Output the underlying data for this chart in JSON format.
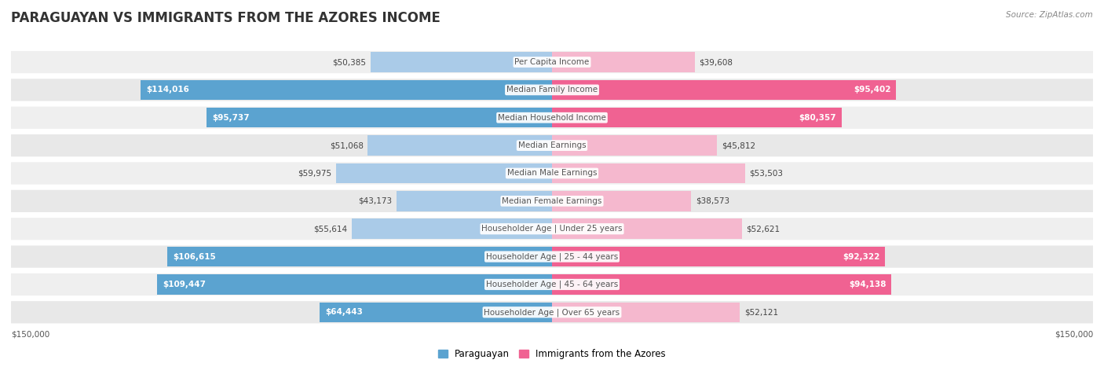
{
  "title": "PARAGUAYAN VS IMMIGRANTS FROM THE AZORES INCOME",
  "source": "Source: ZipAtlas.com",
  "categories": [
    "Per Capita Income",
    "Median Family Income",
    "Median Household Income",
    "Median Earnings",
    "Median Male Earnings",
    "Median Female Earnings",
    "Householder Age | Under 25 years",
    "Householder Age | 25 - 44 years",
    "Householder Age | 45 - 64 years",
    "Householder Age | Over 65 years"
  ],
  "paraguayan_values": [
    50385,
    114016,
    95737,
    51068,
    59975,
    43173,
    55614,
    106615,
    109447,
    64443
  ],
  "azores_values": [
    39608,
    95402,
    80357,
    45812,
    53503,
    38573,
    52621,
    92322,
    94138,
    52121
  ],
  "max_value": 150000,
  "paraguayan_color_light": "#aacbe8",
  "paraguayan_color_dark": "#5ba3d0",
  "azores_color_light": "#f5b8ce",
  "azores_color_dark": "#f06292",
  "row_bg_even": "#efefef",
  "row_bg_odd": "#e8e8e8",
  "title_fontsize": 12,
  "label_fontsize": 7.5,
  "value_fontsize": 7.5,
  "legend_fontsize": 8.5,
  "source_fontsize": 7.5,
  "par_large_threshold": 60000,
  "az_large_threshold": 60000
}
